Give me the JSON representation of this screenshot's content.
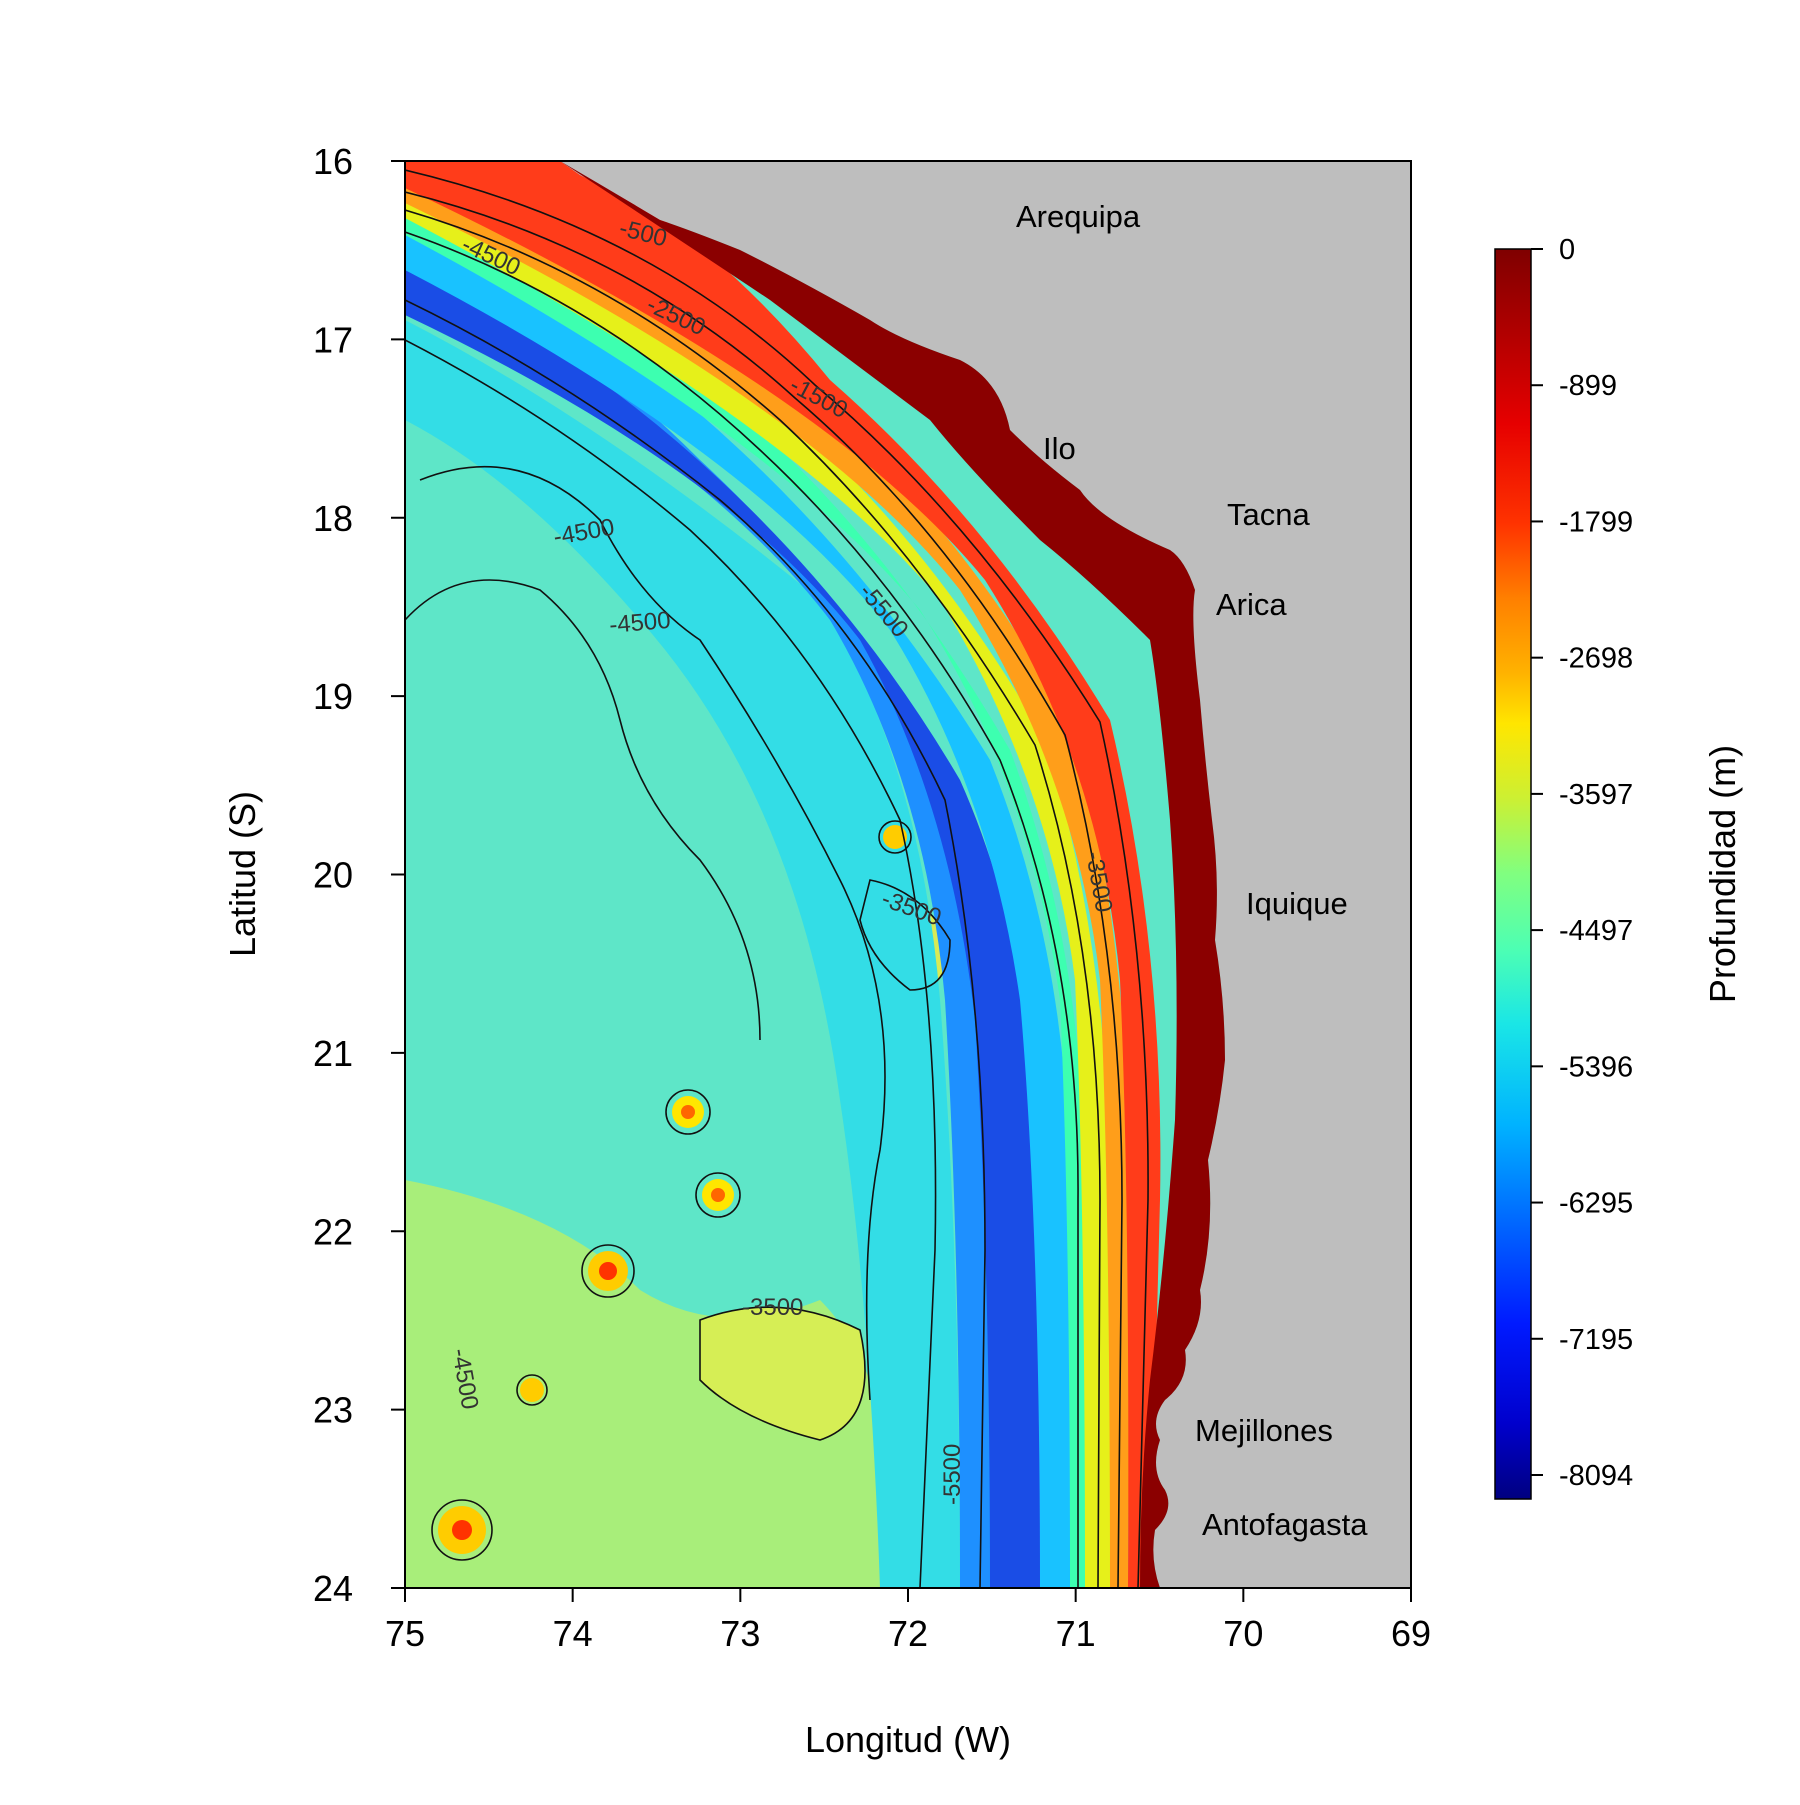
{
  "map": {
    "x_axis": {
      "title": "Longitud (W)",
      "ticks": [
        "75",
        "74",
        "73",
        "72",
        "71",
        "70",
        "69"
      ]
    },
    "y_axis": {
      "title": "Latitud (S)",
      "ticks": [
        "16",
        "17",
        "18",
        "19",
        "20",
        "21",
        "22",
        "23",
        "24"
      ]
    },
    "cities": [
      "Arequipa",
      "Ilo",
      "Tacna",
      "Arica",
      "Iquique",
      "Mejillones",
      "Antofagasta"
    ],
    "contour_labels": [
      "-500",
      "-4500",
      "-2500",
      "-1500",
      "-4500",
      "-4500",
      "-5500",
      "-3500",
      "-3500",
      "-3500",
      "-4500",
      "-5500"
    ],
    "land_color": "#bebebe"
  },
  "colorbar": {
    "title": "Profundidad (m)",
    "labels": [
      "0",
      "-899",
      "-1799",
      "-2698",
      "-3597",
      "-4497",
      "-5396",
      "-6295",
      "-7195",
      "-8094"
    ],
    "colors": [
      "#7f0000",
      "#b30000",
      "#e60000",
      "#ff3300",
      "#ff6600",
      "#ff9900",
      "#ffcc00",
      "#e6e61a",
      "#b3f04d",
      "#80ff80",
      "#4dffb3",
      "#1ae6e6",
      "#00b3ff",
      "#0080ff",
      "#004dff",
      "#001ae6",
      "#000099"
    ]
  }
}
